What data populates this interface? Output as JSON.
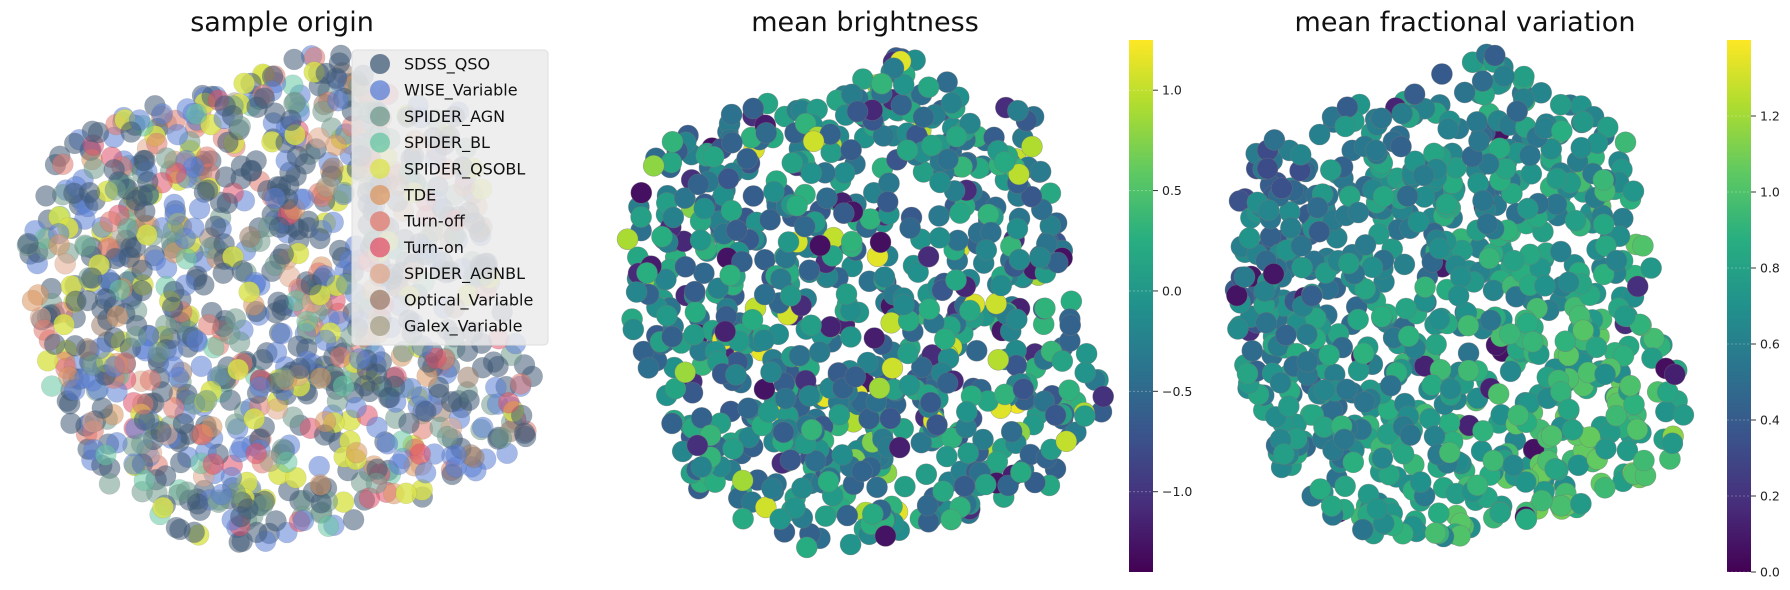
{
  "chart_data": [
    {
      "type": "scatter",
      "title": "sample origin",
      "legend": {
        "placement": "top-right",
        "entries": [
          {
            "name": "SDSS_QSO",
            "color": "#3f5a77"
          },
          {
            "name": "WISE_Variable",
            "color": "#5b7fd6"
          },
          {
            "name": "SPIDER_AGN",
            "color": "#6f9a8c"
          },
          {
            "name": "SPIDER_BL",
            "color": "#66c6a2"
          },
          {
            "name": "SPIDER_QSOBL",
            "color": "#d9e24a"
          },
          {
            "name": "TDE",
            "color": "#d99660"
          },
          {
            "name": "Turn-off",
            "color": "#e0786e"
          },
          {
            "name": "Turn-on",
            "color": "#e0506a"
          },
          {
            "name": "SPIDER_AGNBL",
            "color": "#e0a88c"
          },
          {
            "name": "Optical_Variable",
            "color": "#9b7b68"
          },
          {
            "name": "Galex_Variable",
            "color": "#a6a088"
          }
        ]
      },
      "grid": false,
      "axes_visible": false
    },
    {
      "type": "scatter",
      "title": "mean brightness",
      "colormap": "viridis",
      "colorbar": {
        "min": -1.4,
        "max": 1.25,
        "ticks": [
          "1.0",
          "0.5",
          "0.0",
          "−0.5",
          "−1.0"
        ],
        "tick_values": [
          1.0,
          0.5,
          0.0,
          -0.5,
          -1.0
        ]
      },
      "grid": false,
      "axes_visible": false
    },
    {
      "type": "scatter",
      "title": "mean fractional variation",
      "colormap": "viridis",
      "colorbar": {
        "min": 0.0,
        "max": 1.4,
        "ticks": [
          "1.2",
          "1.0",
          "0.8",
          "0.6",
          "0.4",
          "0.2",
          "0.0"
        ],
        "tick_values": [
          1.2,
          1.0,
          0.8,
          0.6,
          0.4,
          0.2,
          0.0
        ]
      },
      "grid": false,
      "axes_visible": false
    }
  ]
}
